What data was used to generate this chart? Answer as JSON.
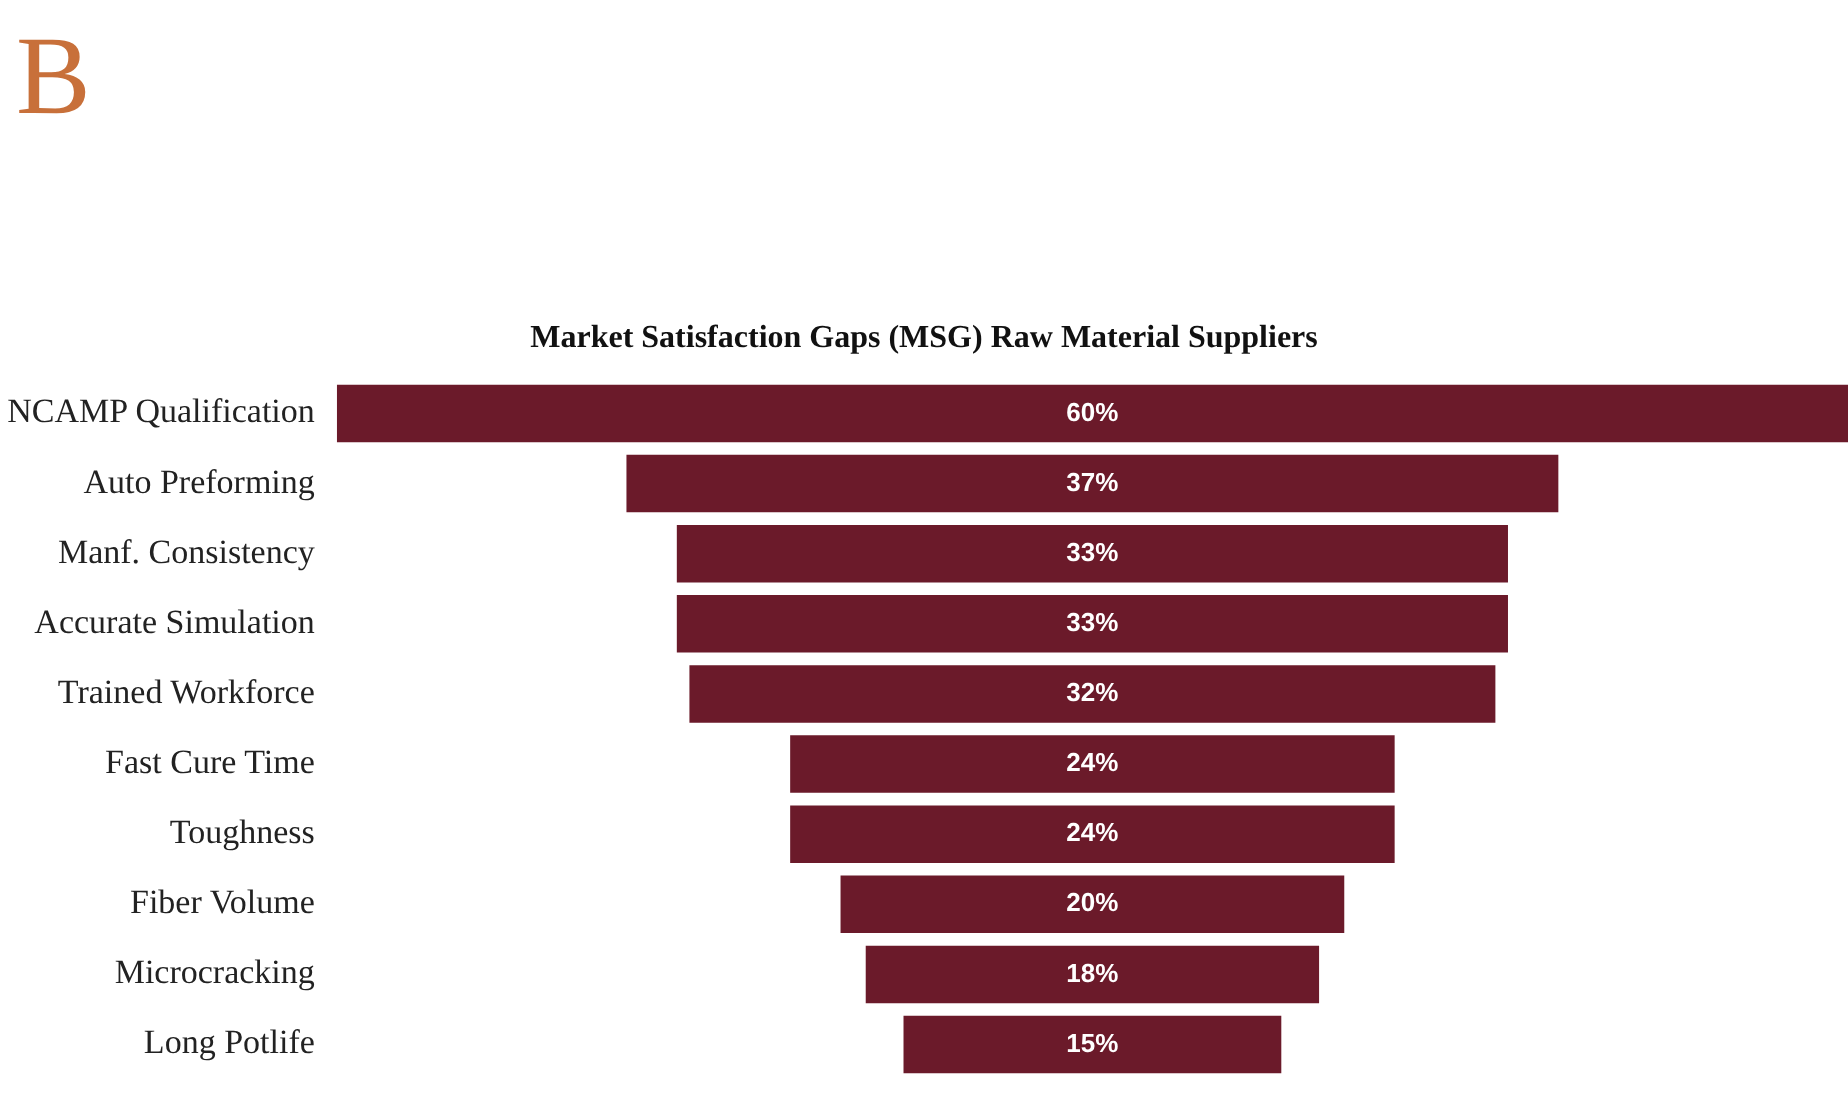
{
  "chart_data": {
    "type": "other",
    "title": "Market Satisfaction Gaps (MSG) Raw Material Suppliers",
    "annotations": [
      "B"
    ],
    "categories": [
      "NCAMP Qualification",
      "Auto Preforming",
      "Manf. Consistency",
      "Accurate Simulation",
      "Trained Workforce",
      "Fast Cure Time",
      "Toughness",
      "Fiber Volume",
      "Microcracking",
      "Long Potlife"
    ],
    "values": [
      60,
      37,
      33,
      33,
      32,
      24,
      24,
      20,
      18,
      15
    ],
    "color": "#6b1a2a",
    "value_labels": [
      "60%",
      "37%",
      "33%",
      "33%",
      "32%",
      "24%",
      "24%",
      "20%",
      "18%",
      "15%"
    ]
  }
}
